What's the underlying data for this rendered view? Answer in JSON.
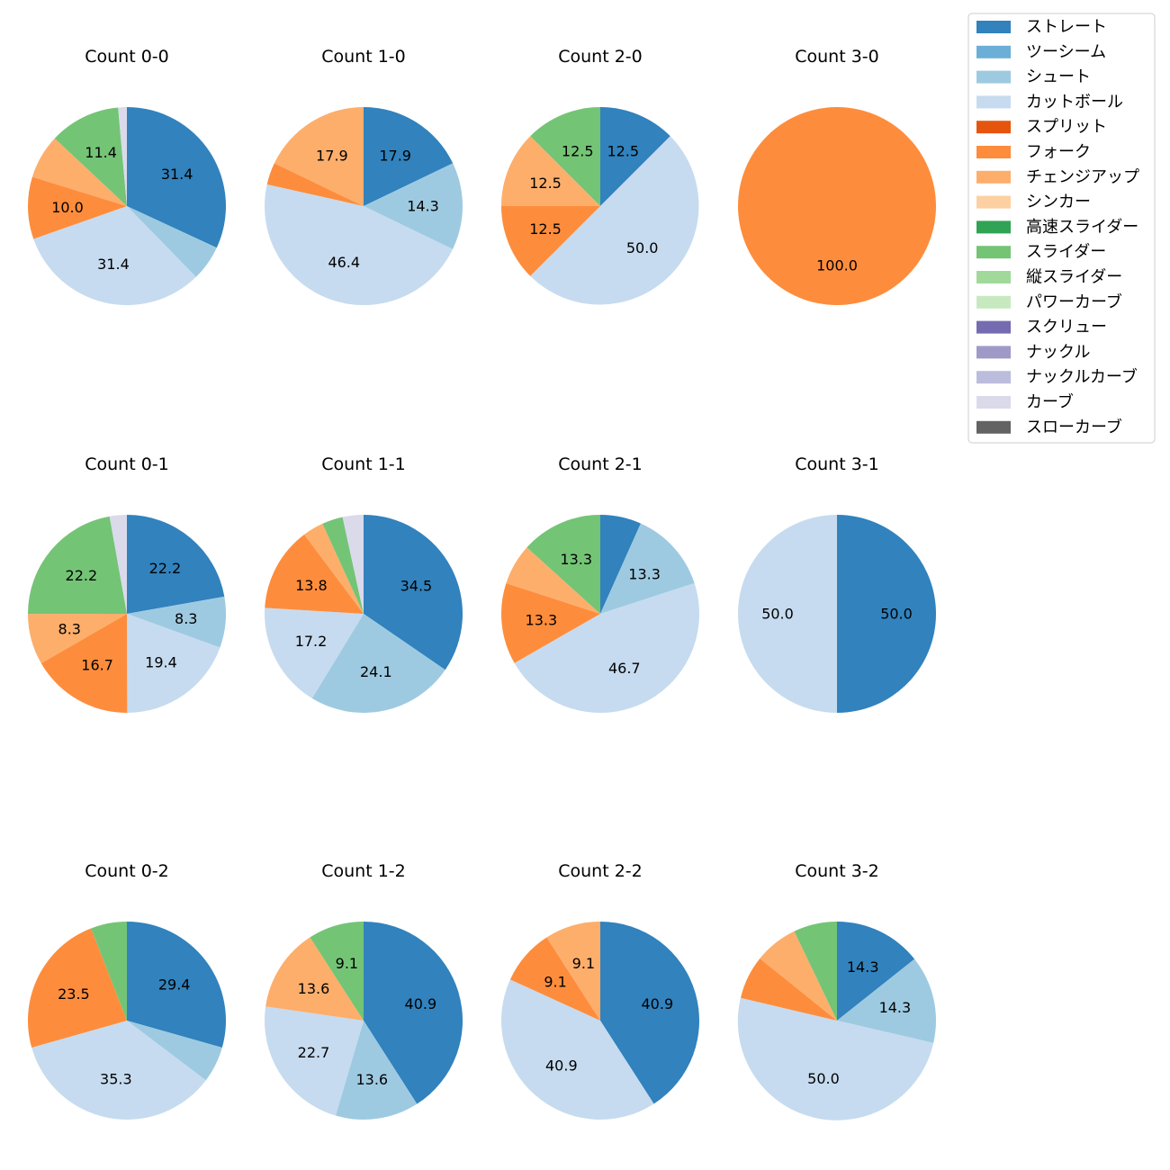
{
  "chart_data": {
    "type": "pie",
    "legend": {
      "placement": "top-right",
      "entries": [
        {
          "name": "ストレート",
          "color": "#3182bd"
        },
        {
          "name": "ツーシーム",
          "color": "#6baed6"
        },
        {
          "name": "シュート",
          "color": "#9ecae1"
        },
        {
          "name": "カットボール",
          "color": "#c6dbef"
        },
        {
          "name": "スプリット",
          "color": "#e6550d"
        },
        {
          "name": "フォーク",
          "color": "#fd8d3c"
        },
        {
          "name": "チェンジアップ",
          "color": "#fdae6b"
        },
        {
          "name": "シンカー",
          "color": "#fdd0a2"
        },
        {
          "name": "高速スライダー",
          "color": "#31a354"
        },
        {
          "name": "スライダー",
          "color": "#74c476"
        },
        {
          "name": "縦スライダー",
          "color": "#a1d99b"
        },
        {
          "name": "パワーカーブ",
          "color": "#c7e9c0"
        },
        {
          "name": "スクリュー",
          "color": "#756bb1"
        },
        {
          "name": "ナックル",
          "color": "#9e9ac8"
        },
        {
          "name": "ナックルカーブ",
          "color": "#bcbddc"
        },
        {
          "name": "カーブ",
          "color": "#dadaeb"
        },
        {
          "name": "スローカーブ",
          "color": "#636363"
        }
      ]
    },
    "pies": [
      {
        "title": "Count 0-0",
        "slices": [
          {
            "pitch": "ストレート",
            "value": 31.4,
            "label": "31.4"
          },
          {
            "pitch": "シュート",
            "value": 5.7,
            "label": ""
          },
          {
            "pitch": "カットボール",
            "value": 31.4,
            "label": "31.4"
          },
          {
            "pitch": "フォーク",
            "value": 10.0,
            "label": "10.0"
          },
          {
            "pitch": "チェンジアップ",
            "value": 7.1,
            "label": ""
          },
          {
            "pitch": "スライダー",
            "value": 11.4,
            "label": "11.4"
          },
          {
            "pitch": "カーブ",
            "value": 1.4,
            "label": ""
          }
        ]
      },
      {
        "title": "Count 1-0",
        "slices": [
          {
            "pitch": "ストレート",
            "value": 17.9,
            "label": "17.9"
          },
          {
            "pitch": "シュート",
            "value": 14.3,
            "label": "14.3"
          },
          {
            "pitch": "カットボール",
            "value": 46.4,
            "label": "46.4"
          },
          {
            "pitch": "フォーク",
            "value": 3.6,
            "label": ""
          },
          {
            "pitch": "チェンジアップ",
            "value": 17.9,
            "label": "17.9"
          }
        ]
      },
      {
        "title": "Count 2-0",
        "slices": [
          {
            "pitch": "ストレート",
            "value": 12.5,
            "label": "12.5"
          },
          {
            "pitch": "カットボール",
            "value": 50.0,
            "label": "50.0"
          },
          {
            "pitch": "フォーク",
            "value": 12.5,
            "label": "12.5"
          },
          {
            "pitch": "チェンジアップ",
            "value": 12.5,
            "label": "12.5"
          },
          {
            "pitch": "スライダー",
            "value": 12.5,
            "label": "12.5"
          }
        ]
      },
      {
        "title": "Count 3-0",
        "slices": [
          {
            "pitch": "フォーク",
            "value": 100.0,
            "label": "100.0"
          }
        ]
      },
      {
        "title": "Count 0-1",
        "slices": [
          {
            "pitch": "ストレート",
            "value": 22.2,
            "label": "22.2"
          },
          {
            "pitch": "シュート",
            "value": 8.3,
            "label": "8.3"
          },
          {
            "pitch": "カットボール",
            "value": 19.4,
            "label": "19.4"
          },
          {
            "pitch": "フォーク",
            "value": 16.7,
            "label": "16.7"
          },
          {
            "pitch": "チェンジアップ",
            "value": 8.3,
            "label": "8.3"
          },
          {
            "pitch": "スライダー",
            "value": 22.2,
            "label": "22.2"
          },
          {
            "pitch": "カーブ",
            "value": 2.8,
            "label": ""
          }
        ]
      },
      {
        "title": "Count 1-1",
        "slices": [
          {
            "pitch": "ストレート",
            "value": 34.5,
            "label": "34.5"
          },
          {
            "pitch": "シュート",
            "value": 24.1,
            "label": "24.1"
          },
          {
            "pitch": "カットボール",
            "value": 17.2,
            "label": "17.2"
          },
          {
            "pitch": "フォーク",
            "value": 13.8,
            "label": "13.8"
          },
          {
            "pitch": "チェンジアップ",
            "value": 3.4,
            "label": ""
          },
          {
            "pitch": "スライダー",
            "value": 3.4,
            "label": ""
          },
          {
            "pitch": "カーブ",
            "value": 3.4,
            "label": ""
          }
        ]
      },
      {
        "title": "Count 2-1",
        "slices": [
          {
            "pitch": "ストレート",
            "value": 6.7,
            "label": ""
          },
          {
            "pitch": "シュート",
            "value": 13.3,
            "label": "13.3"
          },
          {
            "pitch": "カットボール",
            "value": 46.7,
            "label": "46.7"
          },
          {
            "pitch": "フォーク",
            "value": 13.3,
            "label": "13.3"
          },
          {
            "pitch": "チェンジアップ",
            "value": 6.7,
            "label": ""
          },
          {
            "pitch": "スライダー",
            "value": 13.3,
            "label": "13.3"
          }
        ]
      },
      {
        "title": "Count 3-1",
        "slices": [
          {
            "pitch": "ストレート",
            "value": 50.0,
            "label": "50.0"
          },
          {
            "pitch": "カットボール",
            "value": 50.0,
            "label": "50.0"
          }
        ]
      },
      {
        "title": "Count 0-2",
        "slices": [
          {
            "pitch": "ストレート",
            "value": 29.4,
            "label": "29.4"
          },
          {
            "pitch": "シュート",
            "value": 5.9,
            "label": ""
          },
          {
            "pitch": "カットボール",
            "value": 35.3,
            "label": "35.3"
          },
          {
            "pitch": "フォーク",
            "value": 23.5,
            "label": "23.5"
          },
          {
            "pitch": "スライダー",
            "value": 5.9,
            "label": ""
          }
        ]
      },
      {
        "title": "Count 1-2",
        "slices": [
          {
            "pitch": "ストレート",
            "value": 40.9,
            "label": "40.9"
          },
          {
            "pitch": "シュート",
            "value": 13.6,
            "label": "13.6"
          },
          {
            "pitch": "カットボール",
            "value": 22.7,
            "label": "22.7"
          },
          {
            "pitch": "チェンジアップ",
            "value": 13.6,
            "label": "13.6"
          },
          {
            "pitch": "スライダー",
            "value": 9.1,
            "label": "9.1"
          }
        ]
      },
      {
        "title": "Count 2-2",
        "slices": [
          {
            "pitch": "ストレート",
            "value": 40.9,
            "label": "40.9"
          },
          {
            "pitch": "カットボール",
            "value": 40.9,
            "label": "40.9"
          },
          {
            "pitch": "フォーク",
            "value": 9.1,
            "label": "9.1"
          },
          {
            "pitch": "チェンジアップ",
            "value": 9.1,
            "label": "9.1"
          }
        ]
      },
      {
        "title": "Count 3-2",
        "slices": [
          {
            "pitch": "ストレート",
            "value": 14.3,
            "label": "14.3"
          },
          {
            "pitch": "シュート",
            "value": 14.3,
            "label": "14.3"
          },
          {
            "pitch": "カットボール",
            "value": 50.0,
            "label": "50.0"
          },
          {
            "pitch": "フォーク",
            "value": 7.1,
            "label": ""
          },
          {
            "pitch": "チェンジアップ",
            "value": 7.1,
            "label": ""
          },
          {
            "pitch": "スライダー",
            "value": 7.1,
            "label": ""
          }
        ]
      }
    ]
  }
}
